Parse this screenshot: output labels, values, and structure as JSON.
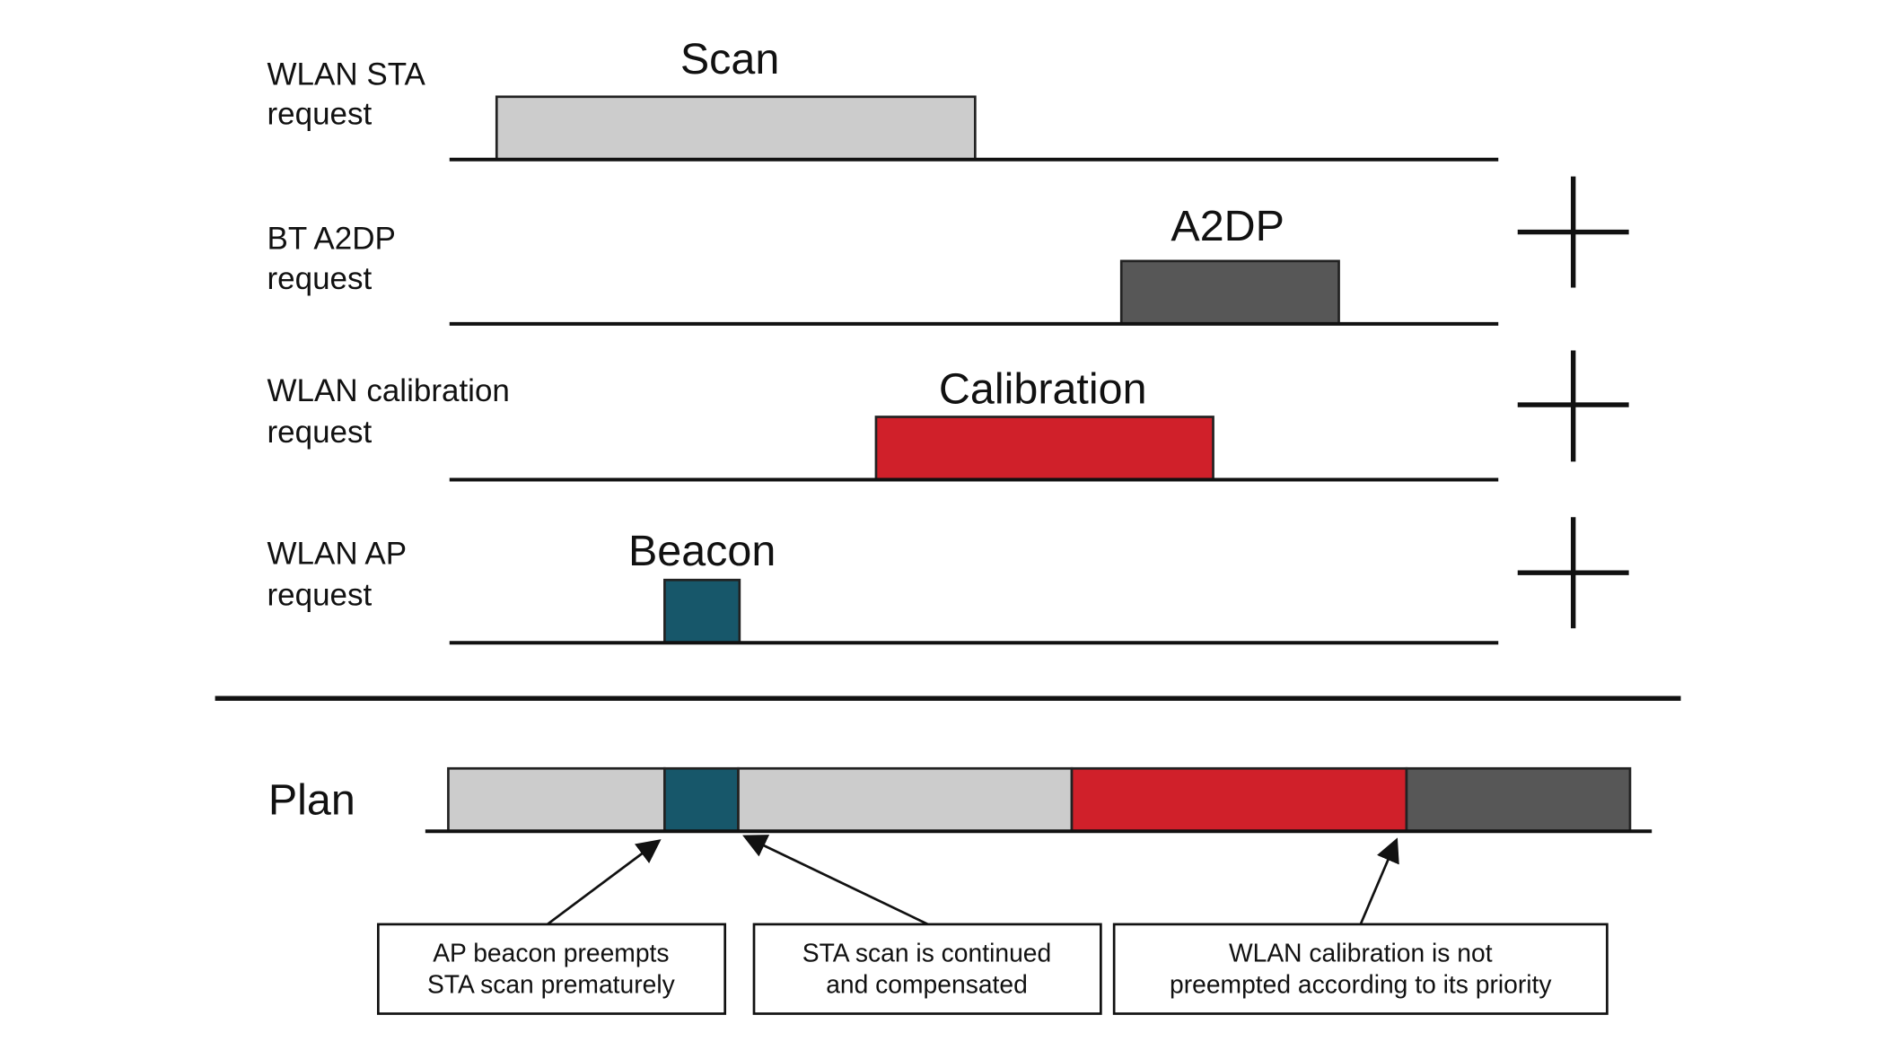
{
  "rows": [
    {
      "label_line1": "WLAN STA",
      "label_line2": "request",
      "block_title": "Scan",
      "color": "#cccccc"
    },
    {
      "label_line1": "BT A2DP",
      "label_line2": "request",
      "block_title": "A2DP",
      "color": "#575757"
    },
    {
      "label_line1": "WLAN calibration",
      "label_line2": "request",
      "block_title": "Calibration",
      "color": "#d0202a"
    },
    {
      "label_line1": "WLAN AP",
      "label_line2": "request",
      "block_title": "Beacon",
      "color": "#17576a"
    }
  ],
  "separator_icons": [
    "plus-icon",
    "plus-icon",
    "plus-icon"
  ],
  "plan": {
    "label": "Plan",
    "segments": [
      {
        "source": "Scan",
        "color": "#cccccc"
      },
      {
        "source": "Beacon",
        "color": "#17576a"
      },
      {
        "source": "Scan",
        "color": "#cccccc"
      },
      {
        "source": "Calibration",
        "color": "#d0202a"
      },
      {
        "source": "A2DP",
        "color": "#575757"
      }
    ]
  },
  "notes": [
    {
      "line1": "AP beacon preempts",
      "line2": "STA scan prematurely"
    },
    {
      "line1": "STA scan is continued",
      "line2": "and compensated"
    },
    {
      "line1": "WLAN calibration is not",
      "line2": "preempted according to its priority"
    }
  ]
}
